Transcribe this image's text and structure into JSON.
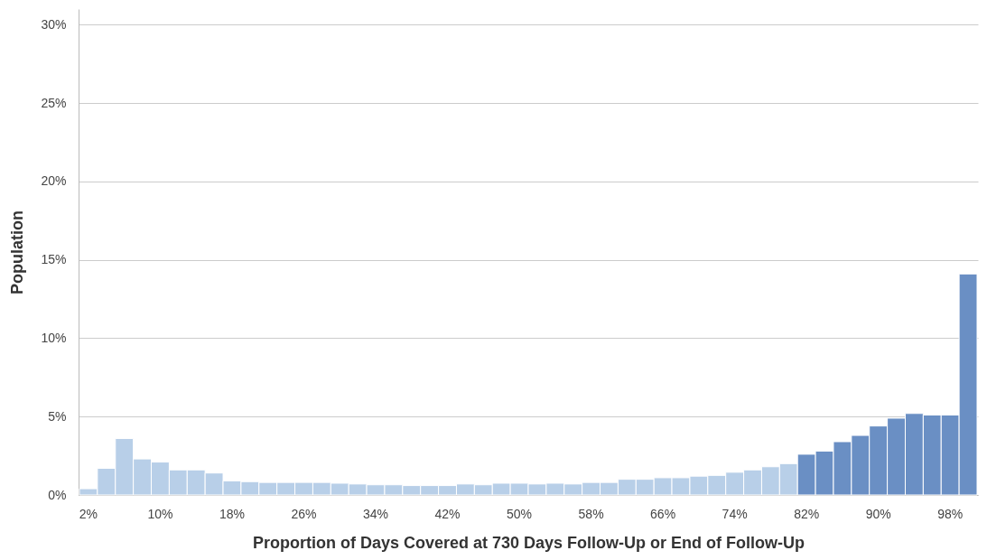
{
  "chart_data": {
    "type": "bar",
    "xlabel": "Proportion of Days Covered at 730 Days Follow-Up or End of Follow-Up",
    "ylabel": "Population",
    "categories": [
      "2%",
      null,
      null,
      null,
      "10%",
      null,
      null,
      null,
      "18%",
      null,
      null,
      null,
      "26%",
      null,
      null,
      null,
      "34%",
      null,
      null,
      null,
      "42%",
      null,
      null,
      null,
      "50%",
      null,
      null,
      null,
      "58%",
      null,
      null,
      null,
      "66%",
      null,
      null,
      null,
      "74%",
      null,
      null,
      null,
      "82%",
      null,
      null,
      null,
      "90%",
      null,
      null,
      null,
      "98%",
      null
    ],
    "values": [
      0.4,
      1.7,
      3.6,
      2.3,
      2.1,
      1.6,
      1.6,
      1.4,
      0.9,
      0.85,
      0.8,
      0.8,
      0.8,
      0.8,
      0.75,
      0.7,
      0.65,
      0.65,
      0.6,
      0.6,
      0.6,
      0.7,
      0.65,
      0.75,
      0.75,
      0.7,
      0.75,
      0.7,
      0.8,
      0.8,
      1.0,
      1.0,
      1.1,
      1.1,
      1.2,
      1.25,
      1.45,
      1.6,
      1.8,
      2.0,
      2.6,
      2.8,
      3.4,
      3.8,
      4.4,
      4.9,
      5.2,
      5.1,
      5.1,
      14.1
    ],
    "colors": [
      "#b8cfe8",
      "#b8cfe8",
      "#b8cfe8",
      "#b8cfe8",
      "#b8cfe8",
      "#b8cfe8",
      "#b8cfe8",
      "#b8cfe8",
      "#b8cfe8",
      "#b8cfe8",
      "#b8cfe8",
      "#b8cfe8",
      "#b8cfe8",
      "#b8cfe8",
      "#b8cfe8",
      "#b8cfe8",
      "#b8cfe8",
      "#b8cfe8",
      "#b8cfe8",
      "#b8cfe8",
      "#b8cfe8",
      "#b8cfe8",
      "#b8cfe8",
      "#b8cfe8",
      "#b8cfe8",
      "#b8cfe8",
      "#b8cfe8",
      "#b8cfe8",
      "#b8cfe8",
      "#b8cfe8",
      "#b8cfe8",
      "#b8cfe8",
      "#b8cfe8",
      "#b8cfe8",
      "#b8cfe8",
      "#b8cfe8",
      "#b8cfe8",
      "#b8cfe8",
      "#b8cfe8",
      "#b8cfe8",
      "#6a8fc4",
      "#6a8fc4",
      "#6a8fc4",
      "#6a8fc4",
      "#6a8fc4",
      "#6a8fc4",
      "#6a8fc4",
      "#6a8fc4",
      "#6a8fc4",
      "#6a8fc4"
    ],
    "ylim": [
      0,
      31
    ],
    "yticks": [
      {
        "value": 0,
        "label": "0%"
      },
      {
        "value": 5,
        "label": "5%"
      },
      {
        "value": 10,
        "label": "10%"
      },
      {
        "value": 15,
        "label": "15%"
      },
      {
        "value": 20,
        "label": "20%"
      },
      {
        "value": 25,
        "label": "25%"
      },
      {
        "value": 30,
        "label": "30%"
      }
    ],
    "grid": "y"
  }
}
